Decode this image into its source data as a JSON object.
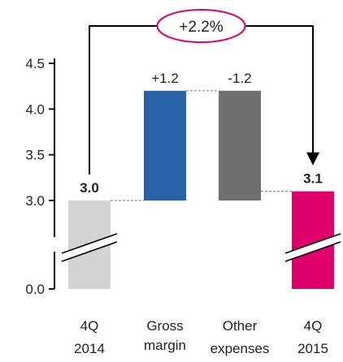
{
  "chart_data": {
    "type": "waterfall",
    "title": "",
    "xlabel": "",
    "ylabel": "",
    "y_ticks": [
      "0.0",
      "3.0",
      "3.5",
      "4.0",
      "4.5"
    ],
    "axis_break": true,
    "categories": [
      [
        "4Q",
        "2014"
      ],
      [
        "Gross",
        "margin"
      ],
      [
        "Other",
        "expenses"
      ],
      [
        "4Q",
        "2015"
      ]
    ],
    "bars": [
      {
        "kind": "total",
        "value": 3.0,
        "label": "3.0",
        "color": "#d3d3d3"
      },
      {
        "kind": "delta",
        "value": 1.2,
        "label": "+1.2",
        "color": "#2a62a8"
      },
      {
        "kind": "delta",
        "value": -1.2,
        "label": "-1.2",
        "color": "#707070"
      },
      {
        "kind": "total",
        "value": 3.1,
        "label": "3.1",
        "color": "#e0006b"
      }
    ],
    "change_annotation": "+2.2%"
  }
}
